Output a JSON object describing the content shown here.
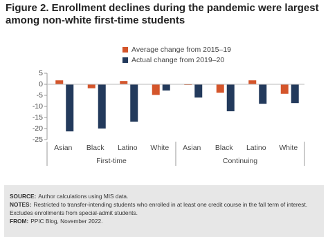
{
  "chart_data": {
    "type": "bar",
    "title": "Figure 2. Enrollment declines during the pandemic were largest among non-white first-time students",
    "categories": [
      "Asian",
      "Black",
      "Latino",
      "White",
      "Asian",
      "Black",
      "Latino",
      "White"
    ],
    "groups": [
      "First-time",
      "Continuing"
    ],
    "series": [
      {
        "name": "Average change from 2015–19",
        "color": "#d4552b",
        "values": [
          1.8,
          -1.8,
          1.5,
          -4.8,
          -0.3,
          -3.8,
          1.8,
          -4.3
        ]
      },
      {
        "name": "Actual change from 2019–20",
        "color": "#233a5c",
        "values": [
          -21.3,
          -20,
          -16.9,
          -2.8,
          -6,
          -12.2,
          -8.8,
          -8.5
        ]
      }
    ],
    "ylim": [
      -25,
      5
    ],
    "yticks": [
      5,
      0,
      -5,
      -10,
      -15,
      -20,
      -25
    ],
    "grid": false
  },
  "notes": [
    {
      "label": "SOURCE:",
      "text": "Author calculations using MIS data."
    },
    {
      "label": "NOTES:",
      "text": "Restricted to transfer-intending students who enrolled in at least one credit course in the fall term of interest. Excludes enrollments from special-admit students."
    },
    {
      "label": "FROM:",
      "text": "PPIC Blog, November 2022."
    }
  ]
}
